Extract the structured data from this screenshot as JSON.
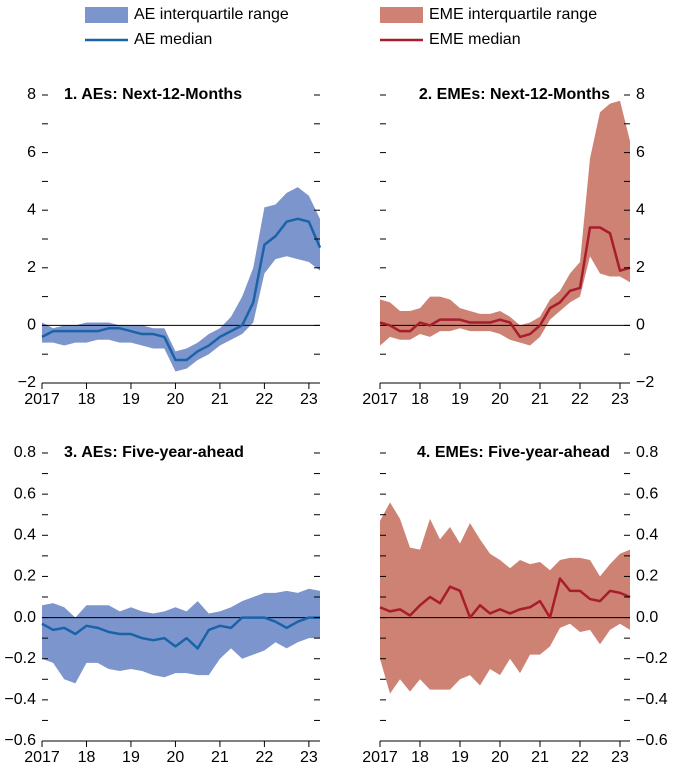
{
  "chart_data": [
    {
      "type": "line",
      "title": "1. AEs: Next-12-Months",
      "axis_side": "left",
      "x": [
        2017,
        2017.25,
        2017.5,
        2017.75,
        2018,
        2018.25,
        2018.5,
        2018.75,
        2019,
        2019.25,
        2019.5,
        2019.75,
        2020,
        2020.25,
        2020.5,
        2020.75,
        2021,
        2021.25,
        2021.5,
        2021.75,
        2022,
        2022.25,
        2022.5,
        2022.75,
        2023,
        2023.25
      ],
      "series": [
        {
          "name": "AE interquartile range",
          "color": "#7d95cd",
          "low": [
            -0.6,
            -0.6,
            -0.7,
            -0.6,
            -0.6,
            -0.5,
            -0.5,
            -0.6,
            -0.6,
            -0.7,
            -0.8,
            -0.8,
            -1.6,
            -1.5,
            -1.2,
            -1.0,
            -0.7,
            -0.5,
            -0.3,
            0.1,
            1.8,
            2.3,
            2.4,
            2.3,
            2.2,
            1.9
          ],
          "high": [
            0.1,
            -0.1,
            0.0,
            0.0,
            0.1,
            0.1,
            0.1,
            0.0,
            0.0,
            0.0,
            -0.1,
            -0.1,
            -0.9,
            -0.8,
            -0.6,
            -0.3,
            -0.1,
            0.3,
            1.0,
            2.0,
            4.1,
            4.2,
            4.6,
            4.8,
            4.5,
            3.7
          ]
        },
        {
          "name": "AE median",
          "color": "#1a63a8",
          "values": [
            -0.4,
            -0.2,
            -0.2,
            -0.2,
            -0.2,
            -0.2,
            -0.1,
            -0.1,
            -0.2,
            -0.3,
            -0.3,
            -0.4,
            -1.2,
            -1.2,
            -0.9,
            -0.7,
            -0.4,
            -0.2,
            0.0,
            0.8,
            2.8,
            3.1,
            3.6,
            3.7,
            3.6,
            2.7
          ]
        }
      ],
      "xlim": [
        2017,
        2023.25
      ],
      "xticks": [
        {
          "value": 2017,
          "label": "2017"
        },
        {
          "value": 2018,
          "label": "18"
        },
        {
          "value": 2019,
          "label": "19"
        },
        {
          "value": 2020,
          "label": "20"
        },
        {
          "value": 2021,
          "label": "21"
        },
        {
          "value": 2022,
          "label": "22"
        },
        {
          "value": 2023,
          "label": "23"
        }
      ],
      "ylim": [
        -2,
        8
      ],
      "yticks": [
        {
          "value": -2,
          "label": "−2"
        },
        0,
        2,
        4,
        6,
        8
      ],
      "yminorticks": [
        -1,
        1,
        3,
        5,
        7
      ],
      "refline": 0
    },
    {
      "type": "line",
      "title": "2. EMEs: Next-12-Months",
      "axis_side": "right",
      "x": [
        2017,
        2017.25,
        2017.5,
        2017.75,
        2018,
        2018.25,
        2018.5,
        2018.75,
        2019,
        2019.25,
        2019.5,
        2019.75,
        2020,
        2020.25,
        2020.5,
        2020.75,
        2021,
        2021.25,
        2021.5,
        2021.75,
        2022,
        2022.25,
        2022.5,
        2022.75,
        2023,
        2023.25
      ],
      "series": [
        {
          "name": "EME interquartile range",
          "color": "#cd8274",
          "low": [
            -0.7,
            -0.4,
            -0.5,
            -0.5,
            -0.3,
            -0.4,
            -0.2,
            -0.2,
            -0.1,
            -0.2,
            -0.2,
            -0.2,
            -0.3,
            -0.5,
            -0.6,
            -0.7,
            -0.4,
            0.2,
            0.5,
            0.8,
            1.0,
            2.4,
            1.8,
            1.7,
            1.7,
            1.5
          ],
          "high": [
            0.9,
            0.8,
            0.5,
            0.5,
            0.6,
            1.0,
            1.0,
            0.9,
            0.6,
            0.5,
            0.4,
            0.4,
            0.5,
            0.3,
            0.0,
            0.1,
            0.3,
            0.9,
            1.2,
            1.8,
            2.2,
            5.8,
            7.4,
            7.7,
            7.8,
            6.4
          ]
        },
        {
          "name": "EME median",
          "color": "#a81c2c",
          "values": [
            0.1,
            0.0,
            -0.2,
            -0.2,
            0.1,
            0.0,
            0.2,
            0.2,
            0.2,
            0.1,
            0.1,
            0.1,
            0.2,
            0.1,
            -0.4,
            -0.3,
            0.0,
            0.6,
            0.8,
            1.2,
            1.3,
            3.4,
            3.4,
            3.2,
            1.9,
            2.0
          ]
        }
      ],
      "xlim": [
        2017,
        2023.25
      ],
      "xticks": [
        {
          "value": 2017,
          "label": "2017"
        },
        {
          "value": 2018,
          "label": "18"
        },
        {
          "value": 2019,
          "label": "19"
        },
        {
          "value": 2020,
          "label": "20"
        },
        {
          "value": 2021,
          "label": "21"
        },
        {
          "value": 2022,
          "label": "22"
        },
        {
          "value": 2023,
          "label": "23"
        }
      ],
      "ylim": [
        -2,
        8
      ],
      "yticks": [
        {
          "value": -2,
          "label": "−2"
        },
        0,
        2,
        4,
        6,
        8
      ],
      "yminorticks": [
        -1,
        1,
        3,
        5,
        7
      ],
      "refline": 0
    },
    {
      "type": "line",
      "title": "3. AEs: Five-year-ahead",
      "axis_side": "left",
      "x": [
        2017,
        2017.25,
        2017.5,
        2017.75,
        2018,
        2018.25,
        2018.5,
        2018.75,
        2019,
        2019.25,
        2019.5,
        2019.75,
        2020,
        2020.25,
        2020.5,
        2020.75,
        2021,
        2021.25,
        2021.5,
        2021.75,
        2022,
        2022.25,
        2022.5,
        2022.75,
        2023,
        2023.25
      ],
      "series": [
        {
          "name": "AE interquartile range",
          "color": "#7d95cd",
          "low": [
            -0.2,
            -0.22,
            -0.3,
            -0.32,
            -0.22,
            -0.22,
            -0.25,
            -0.26,
            -0.25,
            -0.26,
            -0.28,
            -0.29,
            -0.27,
            -0.27,
            -0.28,
            -0.28,
            -0.2,
            -0.15,
            -0.2,
            -0.18,
            -0.16,
            -0.12,
            -0.15,
            -0.12,
            -0.1,
            -0.1
          ],
          "high": [
            0.06,
            0.07,
            0.05,
            0.0,
            0.06,
            0.06,
            0.06,
            0.03,
            0.05,
            0.03,
            0.02,
            0.03,
            0.05,
            0.03,
            0.08,
            0.02,
            0.03,
            0.05,
            0.08,
            0.1,
            0.12,
            0.12,
            0.13,
            0.12,
            0.14,
            0.13
          ]
        },
        {
          "name": "AE median",
          "color": "#1a63a8",
          "values": [
            -0.03,
            -0.06,
            -0.05,
            -0.08,
            -0.04,
            -0.05,
            -0.07,
            -0.08,
            -0.08,
            -0.1,
            -0.11,
            -0.1,
            -0.14,
            -0.1,
            -0.15,
            -0.06,
            -0.04,
            -0.05,
            0.0,
            0.0,
            0.0,
            -0.02,
            -0.05,
            -0.02,
            0.0,
            0.0
          ]
        }
      ],
      "xlim": [
        2017,
        2023.25
      ],
      "xticks": [
        {
          "value": 2017,
          "label": "2017"
        },
        {
          "value": 2018,
          "label": "18"
        },
        {
          "value": 2019,
          "label": "19"
        },
        {
          "value": 2020,
          "label": "20"
        },
        {
          "value": 2021,
          "label": "21"
        },
        {
          "value": 2022,
          "label": "22"
        },
        {
          "value": 2023,
          "label": "23"
        }
      ],
      "ylim": [
        -0.6,
        0.8
      ],
      "yticks": [
        {
          "value": -0.6,
          "label": "−0.6"
        },
        {
          "value": -0.4,
          "label": "−0.4"
        },
        {
          "value": -0.2,
          "label": "−0.2"
        },
        {
          "value": 0,
          "label": "0.0"
        },
        0.2,
        0.4,
        0.6,
        0.8
      ],
      "yminorticks": [
        -0.5,
        -0.3,
        -0.1,
        0.1,
        0.3,
        0.5,
        0.7
      ],
      "refline": 0
    },
    {
      "type": "line",
      "title": "4. EMEs: Five-year-ahead",
      "axis_side": "right",
      "x": [
        2017,
        2017.25,
        2017.5,
        2017.75,
        2018,
        2018.25,
        2018.5,
        2018.75,
        2019,
        2019.25,
        2019.5,
        2019.75,
        2020,
        2020.25,
        2020.5,
        2020.75,
        2021,
        2021.25,
        2021.5,
        2021.75,
        2022,
        2022.25,
        2022.5,
        2022.75,
        2023,
        2023.25
      ],
      "series": [
        {
          "name": "EME interquartile range",
          "color": "#cd8274",
          "low": [
            -0.2,
            -0.37,
            -0.3,
            -0.36,
            -0.3,
            -0.35,
            -0.35,
            -0.35,
            -0.3,
            -0.28,
            -0.33,
            -0.25,
            -0.28,
            -0.2,
            -0.27,
            -0.18,
            -0.18,
            -0.14,
            -0.05,
            -0.03,
            -0.07,
            -0.06,
            -0.13,
            -0.06,
            -0.03,
            -0.06
          ],
          "high": [
            0.47,
            0.56,
            0.48,
            0.34,
            0.33,
            0.48,
            0.38,
            0.44,
            0.36,
            0.46,
            0.38,
            0.31,
            0.28,
            0.24,
            0.28,
            0.26,
            0.27,
            0.23,
            0.28,
            0.29,
            0.29,
            0.28,
            0.2,
            0.26,
            0.31,
            0.33
          ]
        },
        {
          "name": "EME median",
          "color": "#a81c2c",
          "values": [
            0.05,
            0.03,
            0.04,
            0.01,
            0.06,
            0.1,
            0.07,
            0.15,
            0.13,
            0.0,
            0.06,
            0.02,
            0.04,
            0.02,
            0.04,
            0.05,
            0.08,
            0.0,
            0.19,
            0.13,
            0.13,
            0.09,
            0.08,
            0.13,
            0.12,
            0.1
          ]
        }
      ],
      "xlim": [
        2017,
        2023.25
      ],
      "xticks": [
        {
          "value": 2017,
          "label": "2017"
        },
        {
          "value": 2018,
          "label": "18"
        },
        {
          "value": 2019,
          "label": "19"
        },
        {
          "value": 2020,
          "label": "20"
        },
        {
          "value": 2021,
          "label": "21"
        },
        {
          "value": 2022,
          "label": "22"
        },
        {
          "value": 2023,
          "label": "23"
        }
      ],
      "ylim": [
        -0.6,
        0.8
      ],
      "yticks": [
        {
          "value": -0.6,
          "label": "−0.6"
        },
        {
          "value": -0.4,
          "label": "−0.4"
        },
        {
          "value": -0.2,
          "label": "−0.2"
        },
        {
          "value": 0,
          "label": "0.0"
        },
        0.2,
        0.4,
        0.6,
        0.8
      ],
      "yminorticks": [
        -0.5,
        -0.3,
        -0.1,
        0.1,
        0.3,
        0.5,
        0.7
      ],
      "refline": 0
    }
  ]
}
